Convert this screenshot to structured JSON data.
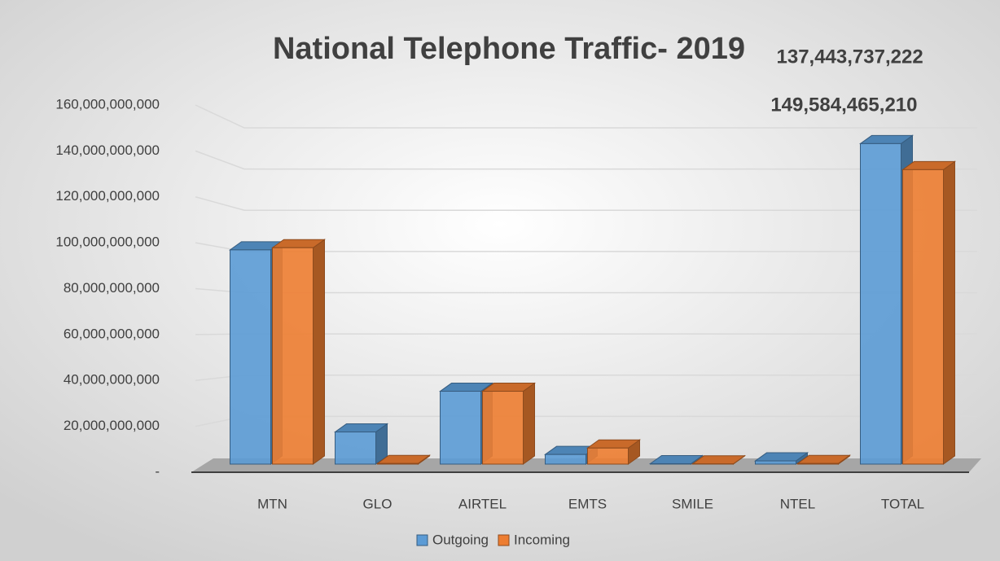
{
  "chart_data": {
    "type": "bar3d",
    "title": "National Telephone Traffic- 2019",
    "categories": [
      "MTN",
      "GLO",
      "AIRTEL",
      "EMTS",
      "SMILE",
      "NTEL",
      "TOTAL"
    ],
    "series": [
      {
        "name": "Outgoing",
        "color": "#5b9bd5",
        "values": [
          100000000000,
          15000000000,
          34000000000,
          4500000000,
          200000000,
          1500000000,
          149584465210
        ],
        "value_labels": [
          null,
          null,
          null,
          null,
          null,
          null,
          "149,584,465,210"
        ]
      },
      {
        "name": "Incoming",
        "color": "#ed7d31",
        "values": [
          101000000000,
          300000000,
          34000000000,
          7500000000,
          100000000,
          300000000,
          137443737222
        ],
        "value_labels": [
          null,
          null,
          null,
          null,
          null,
          null,
          "137,443,737,222"
        ]
      }
    ],
    "ylim": [
      0,
      160000000000
    ],
    "yticks": [
      {
        "value": 0,
        "label": "-"
      },
      {
        "value": 20000000000,
        "label": "20,000,000,000"
      },
      {
        "value": 40000000000,
        "label": "40,000,000,000"
      },
      {
        "value": 60000000000,
        "label": "60,000,000,000"
      },
      {
        "value": 80000000000,
        "label": "80,000,000,000"
      },
      {
        "value": 100000000000,
        "label": "100,000,000,000"
      },
      {
        "value": 120000000000,
        "label": "120,000,000,000"
      },
      {
        "value": 140000000000,
        "label": "140,000,000,000"
      },
      {
        "value": 160000000000,
        "label": "160,000,000,000"
      }
    ],
    "grid": true,
    "legend": "bottom"
  }
}
